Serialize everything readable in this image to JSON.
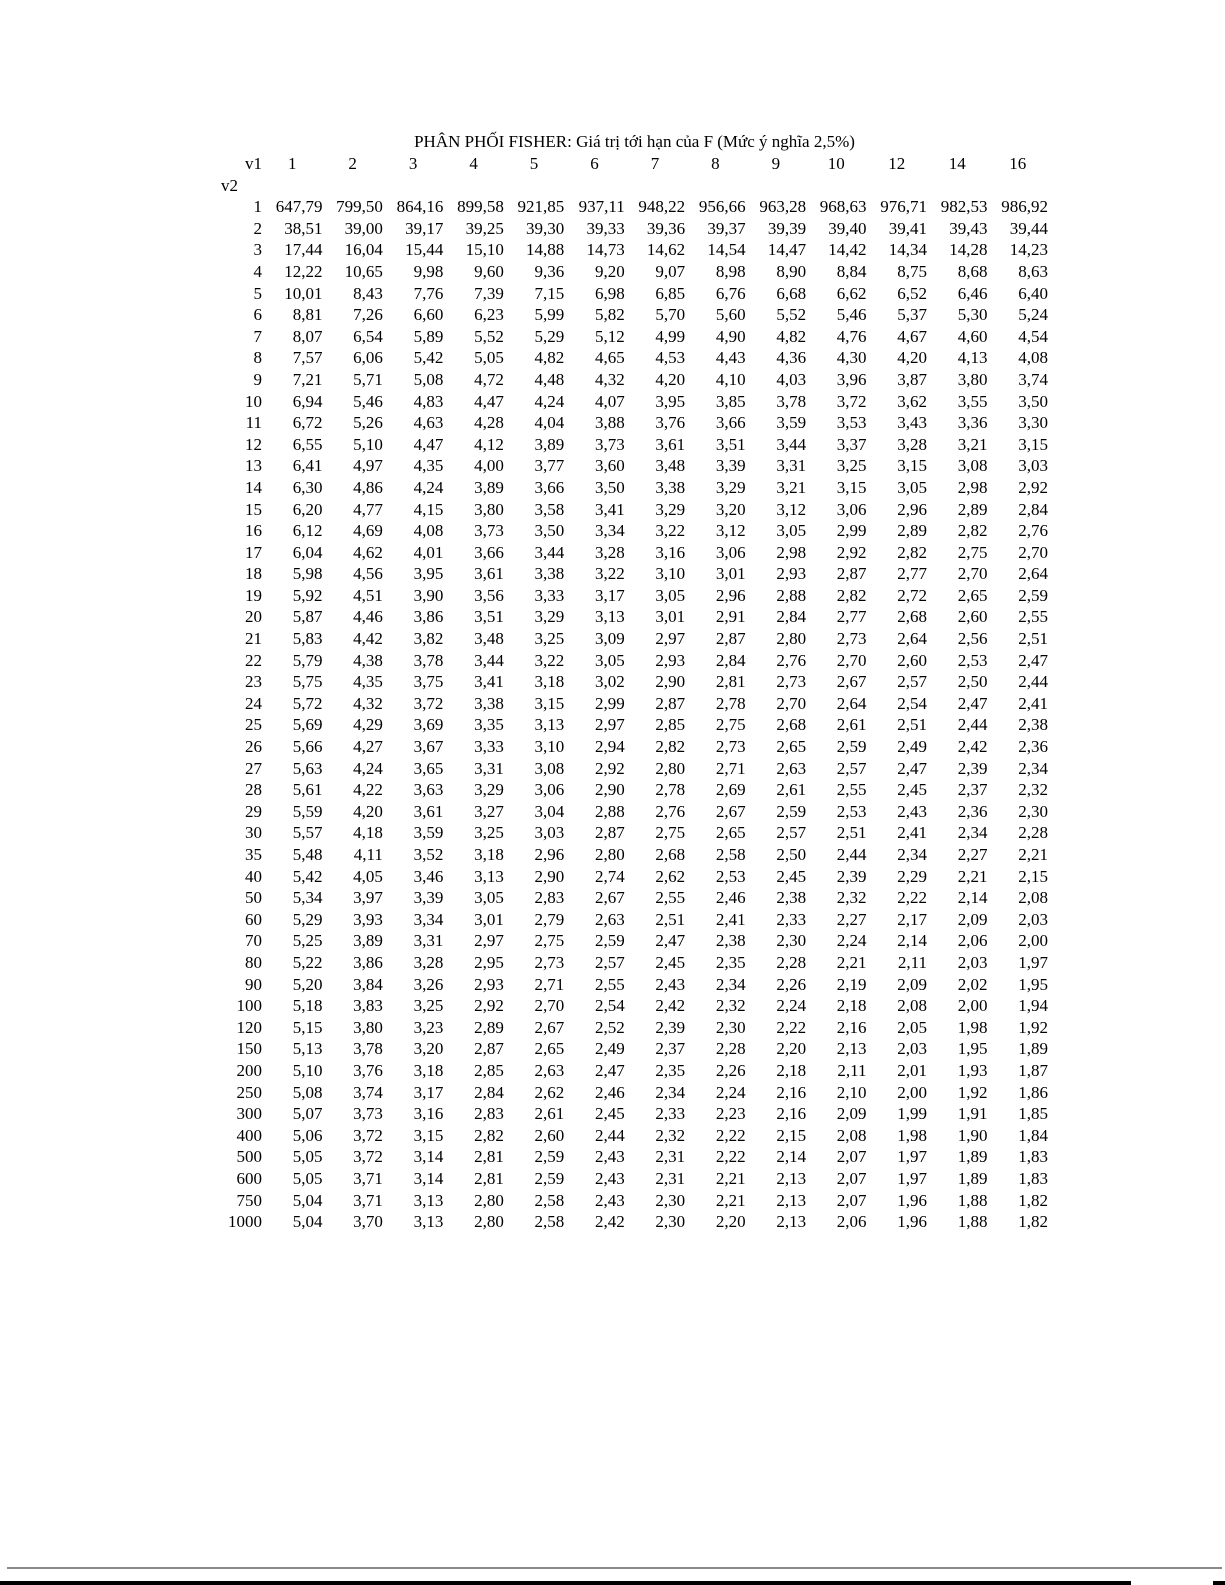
{
  "title": "PHÂN PHỐI FISHER: Giá trị tới hạn của F (Mức ý nghĩa 2,5%)",
  "table": {
    "v1_label": "v1",
    "v2_label": "v2",
    "columns": [
      "1",
      "2",
      "3",
      "4",
      "5",
      "6",
      "7",
      "8",
      "9",
      "10",
      "12",
      "14",
      "16"
    ],
    "rows": [
      [
        "1",
        "647,79",
        "799,50",
        "864,16",
        "899,58",
        "921,85",
        "937,11",
        "948,22",
        "956,66",
        "963,28",
        "968,63",
        "976,71",
        "982,53",
        "986,92"
      ],
      [
        "2",
        "38,51",
        "39,00",
        "39,17",
        "39,25",
        "39,30",
        "39,33",
        "39,36",
        "39,37",
        "39,39",
        "39,40",
        "39,41",
        "39,43",
        "39,44"
      ],
      [
        "3",
        "17,44",
        "16,04",
        "15,44",
        "15,10",
        "14,88",
        "14,73",
        "14,62",
        "14,54",
        "14,47",
        "14,42",
        "14,34",
        "14,28",
        "14,23"
      ],
      [
        "4",
        "12,22",
        "10,65",
        "9,98",
        "9,60",
        "9,36",
        "9,20",
        "9,07",
        "8,98",
        "8,90",
        "8,84",
        "8,75",
        "8,68",
        "8,63"
      ],
      [
        "5",
        "10,01",
        "8,43",
        "7,76",
        "7,39",
        "7,15",
        "6,98",
        "6,85",
        "6,76",
        "6,68",
        "6,62",
        "6,52",
        "6,46",
        "6,40"
      ],
      [
        "6",
        "8,81",
        "7,26",
        "6,60",
        "6,23",
        "5,99",
        "5,82",
        "5,70",
        "5,60",
        "5,52",
        "5,46",
        "5,37",
        "5,30",
        "5,24"
      ],
      [
        "7",
        "8,07",
        "6,54",
        "5,89",
        "5,52",
        "5,29",
        "5,12",
        "4,99",
        "4,90",
        "4,82",
        "4,76",
        "4,67",
        "4,60",
        "4,54"
      ],
      [
        "8",
        "7,57",
        "6,06",
        "5,42",
        "5,05",
        "4,82",
        "4,65",
        "4,53",
        "4,43",
        "4,36",
        "4,30",
        "4,20",
        "4,13",
        "4,08"
      ],
      [
        "9",
        "7,21",
        "5,71",
        "5,08",
        "4,72",
        "4,48",
        "4,32",
        "4,20",
        "4,10",
        "4,03",
        "3,96",
        "3,87",
        "3,80",
        "3,74"
      ],
      [
        "10",
        "6,94",
        "5,46",
        "4,83",
        "4,47",
        "4,24",
        "4,07",
        "3,95",
        "3,85",
        "3,78",
        "3,72",
        "3,62",
        "3,55",
        "3,50"
      ],
      [
        "11",
        "6,72",
        "5,26",
        "4,63",
        "4,28",
        "4,04",
        "3,88",
        "3,76",
        "3,66",
        "3,59",
        "3,53",
        "3,43",
        "3,36",
        "3,30"
      ],
      [
        "12",
        "6,55",
        "5,10",
        "4,47",
        "4,12",
        "3,89",
        "3,73",
        "3,61",
        "3,51",
        "3,44",
        "3,37",
        "3,28",
        "3,21",
        "3,15"
      ],
      [
        "13",
        "6,41",
        "4,97",
        "4,35",
        "4,00",
        "3,77",
        "3,60",
        "3,48",
        "3,39",
        "3,31",
        "3,25",
        "3,15",
        "3,08",
        "3,03"
      ],
      [
        "14",
        "6,30",
        "4,86",
        "4,24",
        "3,89",
        "3,66",
        "3,50",
        "3,38",
        "3,29",
        "3,21",
        "3,15",
        "3,05",
        "2,98",
        "2,92"
      ],
      [
        "15",
        "6,20",
        "4,77",
        "4,15",
        "3,80",
        "3,58",
        "3,41",
        "3,29",
        "3,20",
        "3,12",
        "3,06",
        "2,96",
        "2,89",
        "2,84"
      ],
      [
        "16",
        "6,12",
        "4,69",
        "4,08",
        "3,73",
        "3,50",
        "3,34",
        "3,22",
        "3,12",
        "3,05",
        "2,99",
        "2,89",
        "2,82",
        "2,76"
      ],
      [
        "17",
        "6,04",
        "4,62",
        "4,01",
        "3,66",
        "3,44",
        "3,28",
        "3,16",
        "3,06",
        "2,98",
        "2,92",
        "2,82",
        "2,75",
        "2,70"
      ],
      [
        "18",
        "5,98",
        "4,56",
        "3,95",
        "3,61",
        "3,38",
        "3,22",
        "3,10",
        "3,01",
        "2,93",
        "2,87",
        "2,77",
        "2,70",
        "2,64"
      ],
      [
        "19",
        "5,92",
        "4,51",
        "3,90",
        "3,56",
        "3,33",
        "3,17",
        "3,05",
        "2,96",
        "2,88",
        "2,82",
        "2,72",
        "2,65",
        "2,59"
      ],
      [
        "20",
        "5,87",
        "4,46",
        "3,86",
        "3,51",
        "3,29",
        "3,13",
        "3,01",
        "2,91",
        "2,84",
        "2,77",
        "2,68",
        "2,60",
        "2,55"
      ],
      [
        "21",
        "5,83",
        "4,42",
        "3,82",
        "3,48",
        "3,25",
        "3,09",
        "2,97",
        "2,87",
        "2,80",
        "2,73",
        "2,64",
        "2,56",
        "2,51"
      ],
      [
        "22",
        "5,79",
        "4,38",
        "3,78",
        "3,44",
        "3,22",
        "3,05",
        "2,93",
        "2,84",
        "2,76",
        "2,70",
        "2,60",
        "2,53",
        "2,47"
      ],
      [
        "23",
        "5,75",
        "4,35",
        "3,75",
        "3,41",
        "3,18",
        "3,02",
        "2,90",
        "2,81",
        "2,73",
        "2,67",
        "2,57",
        "2,50",
        "2,44"
      ],
      [
        "24",
        "5,72",
        "4,32",
        "3,72",
        "3,38",
        "3,15",
        "2,99",
        "2,87",
        "2,78",
        "2,70",
        "2,64",
        "2,54",
        "2,47",
        "2,41"
      ],
      [
        "25",
        "5,69",
        "4,29",
        "3,69",
        "3,35",
        "3,13",
        "2,97",
        "2,85",
        "2,75",
        "2,68",
        "2,61",
        "2,51",
        "2,44",
        "2,38"
      ],
      [
        "26",
        "5,66",
        "4,27",
        "3,67",
        "3,33",
        "3,10",
        "2,94",
        "2,82",
        "2,73",
        "2,65",
        "2,59",
        "2,49",
        "2,42",
        "2,36"
      ],
      [
        "27",
        "5,63",
        "4,24",
        "3,65",
        "3,31",
        "3,08",
        "2,92",
        "2,80",
        "2,71",
        "2,63",
        "2,57",
        "2,47",
        "2,39",
        "2,34"
      ],
      [
        "28",
        "5,61",
        "4,22",
        "3,63",
        "3,29",
        "3,06",
        "2,90",
        "2,78",
        "2,69",
        "2,61",
        "2,55",
        "2,45",
        "2,37",
        "2,32"
      ],
      [
        "29",
        "5,59",
        "4,20",
        "3,61",
        "3,27",
        "3,04",
        "2,88",
        "2,76",
        "2,67",
        "2,59",
        "2,53",
        "2,43",
        "2,36",
        "2,30"
      ],
      [
        "30",
        "5,57",
        "4,18",
        "3,59",
        "3,25",
        "3,03",
        "2,87",
        "2,75",
        "2,65",
        "2,57",
        "2,51",
        "2,41",
        "2,34",
        "2,28"
      ],
      [
        "35",
        "5,48",
        "4,11",
        "3,52",
        "3,18",
        "2,96",
        "2,80",
        "2,68",
        "2,58",
        "2,50",
        "2,44",
        "2,34",
        "2,27",
        "2,21"
      ],
      [
        "40",
        "5,42",
        "4,05",
        "3,46",
        "3,13",
        "2,90",
        "2,74",
        "2,62",
        "2,53",
        "2,45",
        "2,39",
        "2,29",
        "2,21",
        "2,15"
      ],
      [
        "50",
        "5,34",
        "3,97",
        "3,39",
        "3,05",
        "2,83",
        "2,67",
        "2,55",
        "2,46",
        "2,38",
        "2,32",
        "2,22",
        "2,14",
        "2,08"
      ],
      [
        "60",
        "5,29",
        "3,93",
        "3,34",
        "3,01",
        "2,79",
        "2,63",
        "2,51",
        "2,41",
        "2,33",
        "2,27",
        "2,17",
        "2,09",
        "2,03"
      ],
      [
        "70",
        "5,25",
        "3,89",
        "3,31",
        "2,97",
        "2,75",
        "2,59",
        "2,47",
        "2,38",
        "2,30",
        "2,24",
        "2,14",
        "2,06",
        "2,00"
      ],
      [
        "80",
        "5,22",
        "3,86",
        "3,28",
        "2,95",
        "2,73",
        "2,57",
        "2,45",
        "2,35",
        "2,28",
        "2,21",
        "2,11",
        "2,03",
        "1,97"
      ],
      [
        "90",
        "5,20",
        "3,84",
        "3,26",
        "2,93",
        "2,71",
        "2,55",
        "2,43",
        "2,34",
        "2,26",
        "2,19",
        "2,09",
        "2,02",
        "1,95"
      ],
      [
        "100",
        "5,18",
        "3,83",
        "3,25",
        "2,92",
        "2,70",
        "2,54",
        "2,42",
        "2,32",
        "2,24",
        "2,18",
        "2,08",
        "2,00",
        "1,94"
      ],
      [
        "120",
        "5,15",
        "3,80",
        "3,23",
        "2,89",
        "2,67",
        "2,52",
        "2,39",
        "2,30",
        "2,22",
        "2,16",
        "2,05",
        "1,98",
        "1,92"
      ],
      [
        "150",
        "5,13",
        "3,78",
        "3,20",
        "2,87",
        "2,65",
        "2,49",
        "2,37",
        "2,28",
        "2,20",
        "2,13",
        "2,03",
        "1,95",
        "1,89"
      ],
      [
        "200",
        "5,10",
        "3,76",
        "3,18",
        "2,85",
        "2,63",
        "2,47",
        "2,35",
        "2,26",
        "2,18",
        "2,11",
        "2,01",
        "1,93",
        "1,87"
      ],
      [
        "250",
        "5,08",
        "3,74",
        "3,17",
        "2,84",
        "2,62",
        "2,46",
        "2,34",
        "2,24",
        "2,16",
        "2,10",
        "2,00",
        "1,92",
        "1,86"
      ],
      [
        "300",
        "5,07",
        "3,73",
        "3,16",
        "2,83",
        "2,61",
        "2,45",
        "2,33",
        "2,23",
        "2,16",
        "2,09",
        "1,99",
        "1,91",
        "1,85"
      ],
      [
        "400",
        "5,06",
        "3,72",
        "3,15",
        "2,82",
        "2,60",
        "2,44",
        "2,32",
        "2,22",
        "2,15",
        "2,08",
        "1,98",
        "1,90",
        "1,84"
      ],
      [
        "500",
        "5,05",
        "3,72",
        "3,14",
        "2,81",
        "2,59",
        "2,43",
        "2,31",
        "2,22",
        "2,14",
        "2,07",
        "1,97",
        "1,89",
        "1,83"
      ],
      [
        "600",
        "5,05",
        "3,71",
        "3,14",
        "2,81",
        "2,59",
        "2,43",
        "2,31",
        "2,21",
        "2,13",
        "2,07",
        "1,97",
        "1,89",
        "1,83"
      ],
      [
        "750",
        "5,04",
        "3,71",
        "3,13",
        "2,80",
        "2,58",
        "2,43",
        "2,30",
        "2,21",
        "2,13",
        "2,07",
        "1,96",
        "1,88",
        "1,82"
      ],
      [
        "1000",
        "5,04",
        "3,70",
        "3,13",
        "2,80",
        "2,58",
        "2,42",
        "2,30",
        "2,20",
        "2,13",
        "2,06",
        "1,96",
        "1,88",
        "1,82"
      ]
    ]
  },
  "decorations": {
    "page_rule_color": "#8a8a8a",
    "bottom_bar_color": "#000000"
  }
}
